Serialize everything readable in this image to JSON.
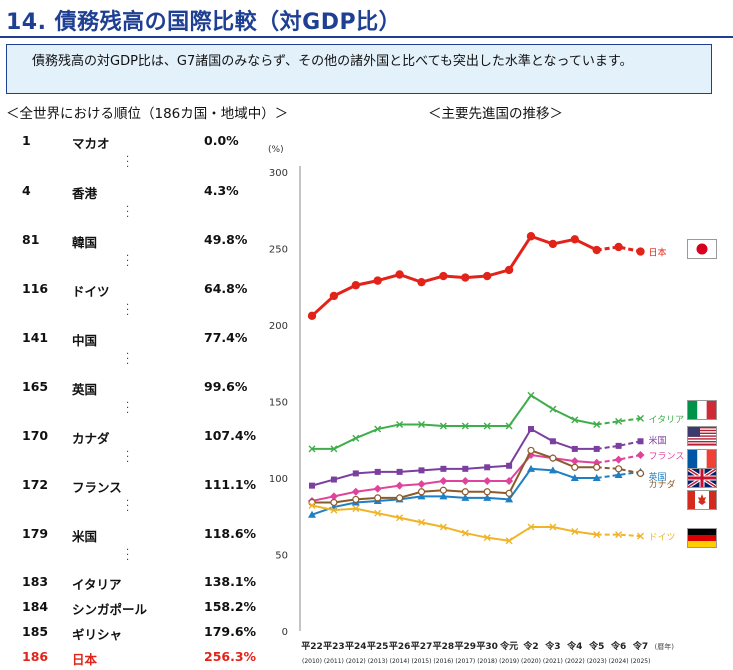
{
  "page": {
    "title": "14. 債務残高の国際比較（対GDP比）",
    "summary": "　債務残高の対GDP比は、G7諸国のみならず、その他の諸外国と比べても突出した水準となっています。",
    "left_heading": "＜全世界における順位（186カ国・地域中）＞",
    "right_heading": "＜主要先進国の推移＞"
  },
  "ranking": [
    {
      "rank": "1",
      "country": "マカオ",
      "value": "0.0%",
      "highlight": false,
      "gap_after": true
    },
    {
      "rank": "4",
      "country": "香港",
      "value": "4.3%",
      "highlight": false,
      "gap_after": true
    },
    {
      "rank": "81",
      "country": "韓国",
      "value": "49.8%",
      "highlight": false,
      "gap_after": true
    },
    {
      "rank": "116",
      "country": "ドイツ",
      "value": "64.8%",
      "highlight": false,
      "gap_after": true
    },
    {
      "rank": "141",
      "country": "中国",
      "value": "77.4%",
      "highlight": false,
      "gap_after": true
    },
    {
      "rank": "165",
      "country": "英国",
      "value": "99.6%",
      "highlight": false,
      "gap_after": true
    },
    {
      "rank": "170",
      "country": "カナダ",
      "value": "107.4%",
      "highlight": false,
      "gap_after": true
    },
    {
      "rank": "172",
      "country": "フランス",
      "value": "111.1%",
      "highlight": false,
      "gap_after": true
    },
    {
      "rank": "179",
      "country": "米国",
      "value": "118.6%",
      "highlight": false,
      "gap_after": true
    },
    {
      "rank": "183",
      "country": "イタリア",
      "value": "138.1%",
      "highlight": false,
      "gap_after": false
    },
    {
      "rank": "184",
      "country": "シンガポール",
      "value": "158.2%",
      "highlight": false,
      "gap_after": false
    },
    {
      "rank": "185",
      "country": "ギリシャ",
      "value": "179.6%",
      "highlight": false,
      "gap_after": false
    },
    {
      "rank": "186",
      "country": "日本",
      "value": "256.3%",
      "highlight": true,
      "gap_after": false
    }
  ],
  "chart_data": {
    "type": "line",
    "ylabel": "(%)",
    "xlabel": "(暦年)",
    "ylim": [
      0,
      300
    ],
    "yticks": [
      0,
      50,
      100,
      150,
      200,
      250,
      300
    ],
    "grid": false,
    "x_labels": [
      "平22",
      "平23",
      "平24",
      "平25",
      "平26",
      "平27",
      "平28",
      "平29",
      "平30",
      "令元",
      "令2",
      "令3",
      "令4",
      "令5",
      "令6",
      "令7"
    ],
    "x_sublabels": [
      "(2010)",
      "(2011)",
      "(2012)",
      "(2013)",
      "(2014)",
      "(2015)",
      "(2016)",
      "(2017)",
      "(2018)",
      "(2019)",
      "(2020)",
      "(2021)",
      "(2022)",
      "(2023)",
      "(2024)",
      "(2025)"
    ],
    "projection_start_index": 13,
    "series": [
      {
        "name": "日本",
        "color": "#e2231a",
        "marker": "circle",
        "values": [
          206,
          219,
          226,
          229,
          233,
          228,
          232,
          231,
          232,
          236,
          258,
          253,
          256,
          249,
          251,
          248
        ]
      },
      {
        "name": "イタリア",
        "color": "#3fae4a",
        "marker": "x",
        "values": [
          119,
          119,
          126,
          132,
          135,
          135,
          134,
          134,
          134,
          134,
          154,
          145,
          138,
          135,
          137,
          139
        ]
      },
      {
        "name": "米国",
        "color": "#7b3fa0",
        "marker": "square",
        "values": [
          95,
          99,
          103,
          104,
          104,
          105,
          106,
          106,
          107,
          108,
          132,
          124,
          119,
          119,
          121,
          124
        ]
      },
      {
        "name": "フランス",
        "color": "#e0439c",
        "marker": "diamond",
        "values": [
          85,
          88,
          91,
          93,
          95,
          96,
          98,
          98,
          98,
          98,
          115,
          113,
          111,
          110,
          112,
          115
        ]
      },
      {
        "name": "英国",
        "color": "#1f7fc4",
        "marker": "triangle",
        "values": [
          76,
          81,
          84,
          85,
          86,
          88,
          88,
          87,
          87,
          86,
          106,
          105,
          100,
          100,
          102,
          104
        ]
      },
      {
        "name": "カナダ",
        "color": "#8b5a2b",
        "marker": "ocircle",
        "values": [
          84,
          84,
          86,
          87,
          87,
          91,
          92,
          91,
          91,
          90,
          118,
          113,
          107,
          107,
          106,
          103
        ]
      },
      {
        "name": "ドイツ",
        "color": "#f0b429",
        "marker": "x",
        "values": [
          82,
          79,
          80,
          77,
          74,
          71,
          68,
          64,
          61,
          59,
          68,
          68,
          65,
          63,
          63,
          62
        ]
      }
    ]
  }
}
